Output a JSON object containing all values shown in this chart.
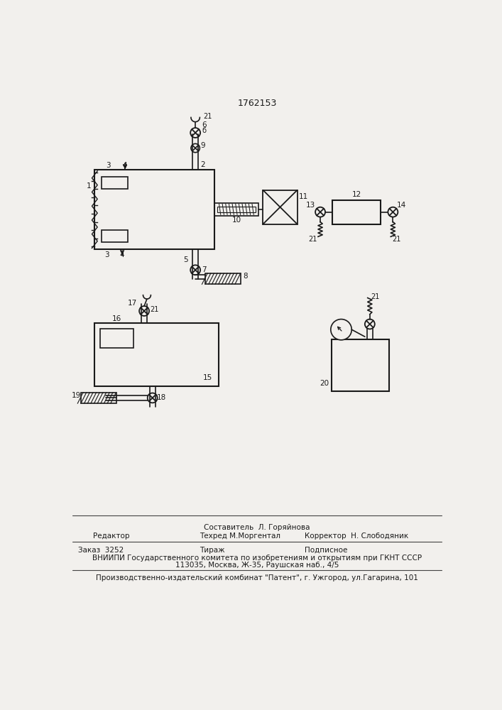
{
  "title": "1762153",
  "bg_color": "#f2f0ed",
  "line_color": "#1a1a1a",
  "footer": {
    "line1_center": "Составитель  Л. Горяйнова",
    "line2_left": "Редактор",
    "line2_center": "Техред М.Моргентал",
    "line2_right": "Корректор  Н. Слободяник",
    "line3_left": "Заказ  3252",
    "line3_center": "Тираж",
    "line3_right": "Подписное",
    "line4": "ВНИИПИ Государственного комитета по изобретениям и открытиям при ГКНТ СССР",
    "line5": "113035, Москва, Ж-35, Раушская наб., 4/5",
    "line6": "Производственно-издательский комбинат \"Патент\", г. Ужгород, ул.Гагарина, 101"
  }
}
